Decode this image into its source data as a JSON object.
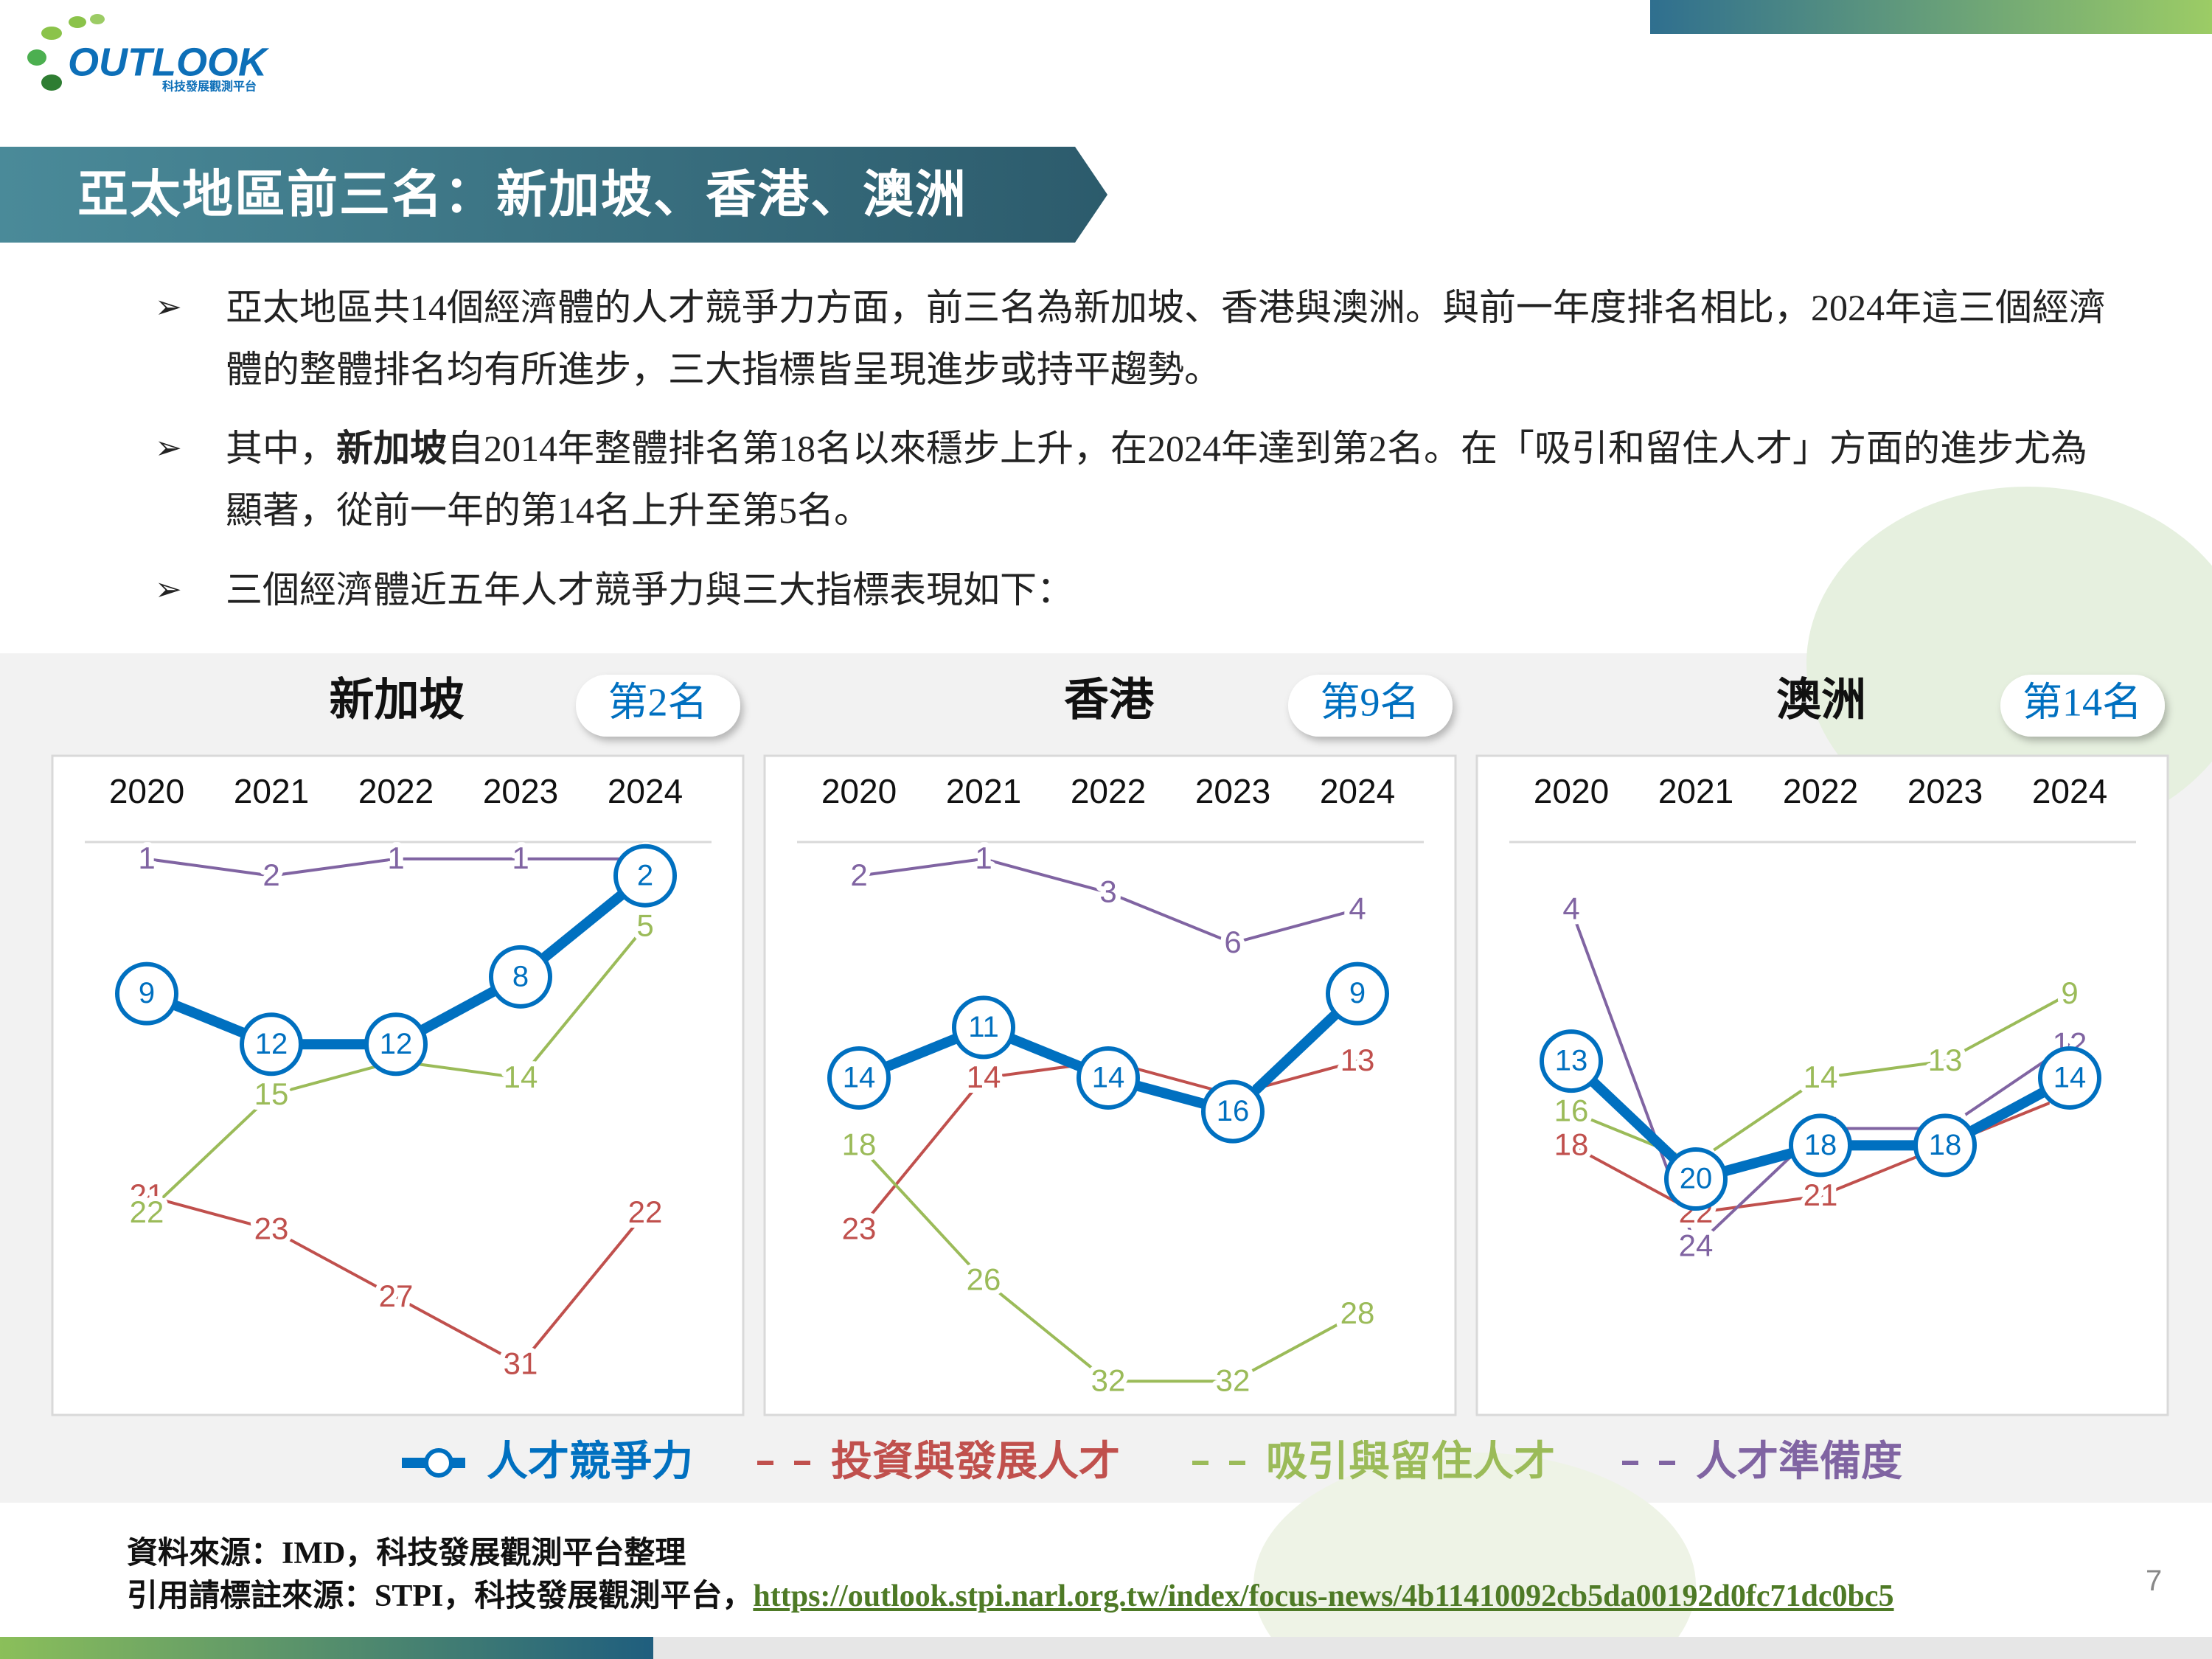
{
  "logo": {
    "name": "OUTLOOK",
    "subtitle": "科技發展觀測平台"
  },
  "header": {
    "title": "亞太地區前三名：新加坡、香港、澳洲"
  },
  "bullets": [
    {
      "text": "亞太地區共14個經濟體的人才競爭力方面，前三名為新加坡、香港與澳洲。與前一年度排名相比，2024年這三個經濟體的整體排名均有所進步，三大指標皆呈現進步或持平趨勢。"
    },
    {
      "before": "其中，",
      "bold": "新加坡",
      "after": "自2014年整體排名第18名以來穩步上升，在2024年達到第2名。在「吸引和留住人才」方面的進步尤為顯著，從前一年的第14名上升至第5名。"
    },
    {
      "text": "三個經濟體近五年人才競爭力與三大指標表現如下："
    }
  ],
  "chart_data": [
    {
      "type": "line",
      "title": "新加坡",
      "rank_label": "第2名",
      "categories": [
        "2020",
        "2021",
        "2022",
        "2023",
        "2024"
      ],
      "ylim": [
        0,
        34
      ],
      "inverted": true,
      "series": [
        {
          "name": "人才競爭力",
          "color": "#0070c0",
          "markers": true,
          "values": [
            9,
            12,
            12,
            8,
            2
          ]
        },
        {
          "name": "投資與發展人才",
          "color": "#c0504d",
          "values": [
            21,
            23,
            27,
            31,
            22
          ]
        },
        {
          "name": "吸引與留住人才",
          "color": "#9bbb59",
          "values": [
            22,
            15,
            13,
            14,
            5
          ]
        },
        {
          "name": "人才準備度",
          "color": "#8064a2",
          "values": [
            1,
            2,
            1,
            1,
            1
          ]
        }
      ]
    },
    {
      "type": "line",
      "title": "香港",
      "rank_label": "第9名",
      "categories": [
        "2020",
        "2021",
        "2022",
        "2023",
        "2024"
      ],
      "ylim": [
        0,
        34
      ],
      "inverted": true,
      "series": [
        {
          "name": "人才競爭力",
          "color": "#0070c0",
          "markers": true,
          "values": [
            14,
            11,
            14,
            16,
            9
          ]
        },
        {
          "name": "投資與發展人才",
          "color": "#c0504d",
          "values": [
            23,
            14,
            13,
            15,
            13
          ]
        },
        {
          "name": "吸引與留住人才",
          "color": "#9bbb59",
          "values": [
            18,
            26,
            32,
            32,
            28
          ]
        },
        {
          "name": "人才準備度",
          "color": "#8064a2",
          "values": [
            2,
            1,
            3,
            6,
            4
          ]
        }
      ]
    },
    {
      "type": "line",
      "title": "澳洲",
      "rank_label": "第14名",
      "categories": [
        "2020",
        "2021",
        "2022",
        "2023",
        "2024"
      ],
      "ylim": [
        0,
        34
      ],
      "inverted": true,
      "series": [
        {
          "name": "人才競爭力",
          "color": "#0070c0",
          "markers": true,
          "values": [
            13,
            20,
            18,
            18,
            14
          ]
        },
        {
          "name": "投資與發展人才",
          "color": "#c0504d",
          "values": [
            18,
            22,
            21,
            18,
            15
          ]
        },
        {
          "name": "吸引與留住人才",
          "color": "#9bbb59",
          "values": [
            16,
            19,
            14,
            13,
            9
          ]
        },
        {
          "name": "人才準備度",
          "color": "#8064a2",
          "values": [
            4,
            24,
            17,
            17,
            12
          ]
        }
      ]
    }
  ],
  "footer": {
    "source": "資料來源：IMD，科技發展觀測平台整理",
    "cite": "引用請標註來源：STPI，科技發展觀測平台，",
    "url": "https://outlook.stpi.narl.org.tw/index/focus-news/4b11410092cb5da00192d0fc71dc0bc5"
  },
  "page_number": "7"
}
